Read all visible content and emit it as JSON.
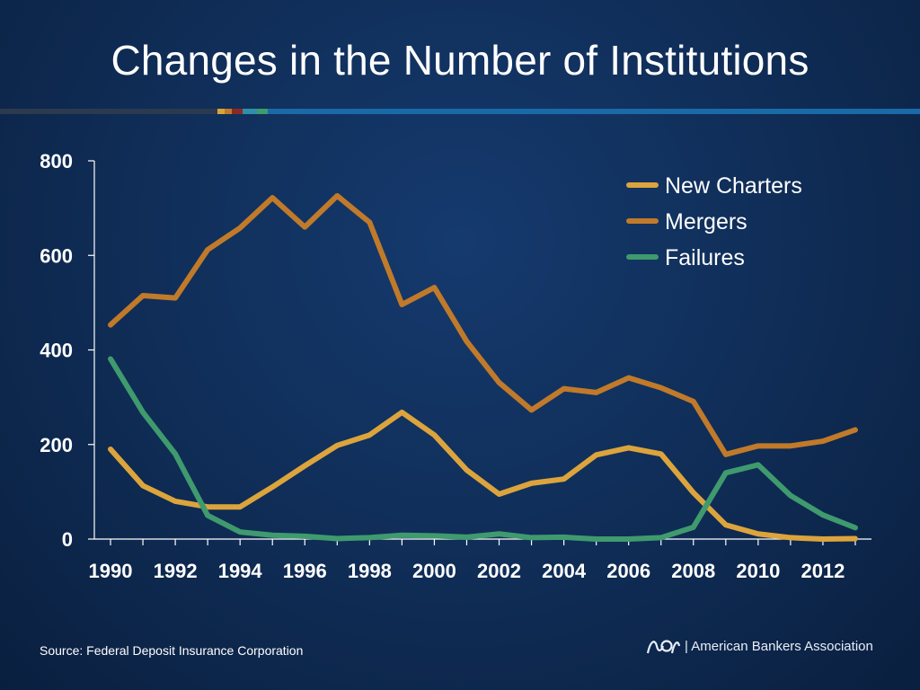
{
  "title": "Changes in the Number of Institutions",
  "source": "Source:  Federal Deposit Insurance Corporation",
  "footer": {
    "organization": "| American Bankers Association",
    "logo": "aba-logo-icon"
  },
  "colors": {
    "background": "#0f2c55",
    "new_charters": "#dca43c",
    "mergers": "#c07a2a",
    "failures": "#3f9a6e",
    "axis": "#ffffff"
  },
  "chart_data": {
    "type": "line",
    "title": "Changes in the Number of Institutions",
    "xlabel": "",
    "ylabel": "",
    "x": [
      1990,
      1991,
      1992,
      1993,
      1994,
      1995,
      1996,
      1997,
      1998,
      1999,
      2000,
      2001,
      2002,
      2003,
      2004,
      2005,
      2006,
      2007,
      2008,
      2009,
      2010,
      2011,
      2012,
      2013
    ],
    "x_tick_labels": [
      "1990",
      "1992",
      "1994",
      "1996",
      "1998",
      "2000",
      "2002",
      "2004",
      "2006",
      "2008",
      "2010",
      "2012"
    ],
    "y_ticks": [
      0,
      200,
      400,
      600,
      800
    ],
    "ylim": [
      0,
      800
    ],
    "xlim": [
      1989.5,
      2013.5
    ],
    "legend_position": "top-right",
    "series": [
      {
        "name": "New Charters",
        "color": "#dca43c",
        "values": [
          190,
          113,
          80,
          68,
          68,
          110,
          155,
          198,
          220,
          268,
          220,
          146,
          95,
          118,
          127,
          178,
          193,
          180,
          98,
          30,
          11,
          3,
          0,
          1
        ]
      },
      {
        "name": "Mergers",
        "color": "#c07a2a",
        "values": [
          453,
          515,
          510,
          612,
          658,
          722,
          660,
          726,
          670,
          496,
          532,
          418,
          331,
          273,
          318,
          310,
          341,
          320,
          291,
          179,
          197,
          197,
          207,
          231
        ]
      },
      {
        "name": "Failures",
        "color": "#3f9a6e",
        "values": [
          381,
          268,
          180,
          50,
          15,
          8,
          6,
          1,
          3,
          8,
          7,
          4,
          11,
          3,
          4,
          0,
          0,
          3,
          25,
          140,
          157,
          92,
          51,
          24
        ]
      }
    ]
  }
}
